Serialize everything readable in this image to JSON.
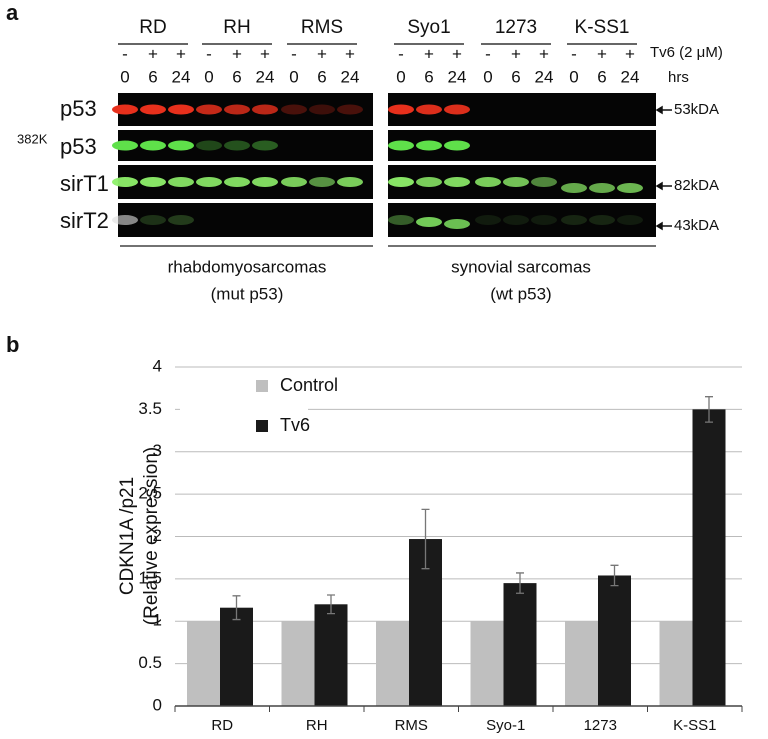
{
  "panel_a": {
    "label": "a",
    "groups": [
      {
        "name": "RD",
        "treatment": [
          "-",
          "+",
          "+"
        ],
        "hours": [
          0,
          6,
          24
        ]
      },
      {
        "name": "RH",
        "treatment": [
          "-",
          "+",
          "+"
        ],
        "hours": [
          0,
          6,
          24
        ]
      },
      {
        "name": "RMS",
        "treatment": [
          "-",
          "+",
          "+"
        ],
        "hours": [
          0,
          6,
          24
        ]
      },
      {
        "name": "Syo1",
        "treatment": [
          "-",
          "+",
          "+"
        ],
        "hours": [
          0,
          6,
          24
        ]
      },
      {
        "name": "1273",
        "treatment": [
          "-",
          "+",
          "+"
        ],
        "hours": [
          0,
          6,
          24
        ]
      },
      {
        "name": "K-SS1",
        "treatment": [
          "-",
          "+",
          "+"
        ],
        "hours": [
          0,
          6,
          24
        ]
      }
    ],
    "treatment_label": "Tv6 (2 μM)",
    "hours_label": "hrs",
    "rows": [
      {
        "label": "p53"
      },
      {
        "superscript": "382K",
        "label": "p53"
      },
      {
        "label": "sirT1"
      },
      {
        "label": "sirT2"
      }
    ],
    "markers": [
      "53kDA",
      "82kDA",
      "43kDA"
    ],
    "footer": [
      {
        "line1": "rhabdomyosarcomas",
        "line2": "(mut p53)"
      },
      {
        "line1": "synovial sarcomas",
        "line2": "(wt p53)"
      }
    ]
  },
  "chart_data": {
    "type": "bar",
    "label": "b",
    "ylabel": [
      "CDKN1A /p21",
      "(Relative expression)"
    ],
    "categories": [
      "RD",
      "RH",
      "RMS",
      "Syo-1",
      "1273",
      "K-SS1"
    ],
    "series": [
      {
        "name": "Control",
        "color": "#bfbfbf",
        "values": [
          1,
          1,
          1,
          1,
          1,
          1
        ]
      },
      {
        "name": "Tv6",
        "color": "#1a1a1a",
        "values": [
          1.16,
          1.2,
          1.97,
          1.45,
          1.54,
          3.5
        ],
        "errors": [
          0.14,
          0.11,
          0.35,
          0.12,
          0.12,
          0.15
        ]
      }
    ],
    "ylim": [
      0,
      4
    ],
    "yticks": [
      0,
      0.5,
      1,
      1.5,
      2,
      2.5,
      3,
      3.5,
      4
    ],
    "grid": true,
    "legend": "top-left"
  }
}
